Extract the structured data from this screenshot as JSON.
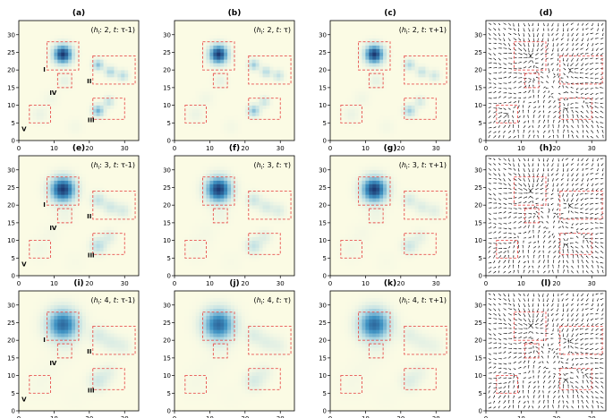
{
  "figure": {
    "rows": [
      {
        "h": "2",
        "letters": [
          "(a)",
          "(b)",
          "(c)",
          "(d)"
        ]
      },
      {
        "h": "3",
        "letters": [
          "(e)",
          "(f)",
          "(g)",
          "(h)"
        ]
      },
      {
        "h": "4",
        "letters": [
          "(i)",
          "(j)",
          "(k)",
          "(l)"
        ]
      }
    ],
    "time_labels": [
      "τ-1",
      "τ",
      "τ+1"
    ],
    "region_labels": [
      "I",
      "II",
      "III",
      "IV",
      "V"
    ],
    "colors": {
      "region_box": "#e8514f",
      "background": "#fbfbe4",
      "deep": "#1c3a72",
      "mid": "#3f93c4",
      "light": "#b9dde4",
      "arrow": "#111111"
    }
  },
  "chart_data": {
    "type": "heatmap",
    "grid": "34x34",
    "xlim": [
      0,
      34
    ],
    "ylim": [
      0,
      34
    ],
    "xticks": [
      "0",
      "10",
      "20",
      "30"
    ],
    "yticks": [
      "0",
      "5",
      "10",
      "15",
      "20",
      "25",
      "30"
    ],
    "regions": [
      {
        "name": "I",
        "x": [
          8,
          17
        ],
        "y": [
          20,
          28
        ]
      },
      {
        "name": "II",
        "x": [
          21,
          33
        ],
        "y": [
          16,
          24
        ]
      },
      {
        "name": "III",
        "x": [
          21,
          30
        ],
        "y": [
          6,
          12
        ]
      },
      {
        "name": "IV",
        "x": [
          11,
          15
        ],
        "y": [
          15,
          19
        ]
      },
      {
        "name": "V",
        "x": [
          3,
          9
        ],
        "y": [
          5,
          10
        ]
      }
    ],
    "panels": [
      {
        "id": "a",
        "type": "heatmap",
        "h": 2,
        "t": "τ-1"
      },
      {
        "id": "b",
        "type": "heatmap",
        "h": 2,
        "t": "τ"
      },
      {
        "id": "c",
        "type": "heatmap",
        "h": 2,
        "t": "τ+1"
      },
      {
        "id": "d",
        "type": "vector_field",
        "h": 2
      },
      {
        "id": "e",
        "type": "heatmap",
        "h": 3,
        "t": "τ-1"
      },
      {
        "id": "f",
        "type": "heatmap",
        "h": 3,
        "t": "τ"
      },
      {
        "id": "g",
        "type": "heatmap",
        "h": 3,
        "t": "τ+1"
      },
      {
        "id": "h",
        "type": "vector_field",
        "h": 3
      },
      {
        "id": "i",
        "type": "heatmap",
        "h": 4,
        "t": "τ-1"
      },
      {
        "id": "j",
        "type": "heatmap",
        "h": 4,
        "t": "τ"
      },
      {
        "id": "k",
        "type": "heatmap",
        "h": 4,
        "t": "τ+1"
      },
      {
        "id": "l",
        "type": "vector_field",
        "h": 4
      }
    ]
  }
}
